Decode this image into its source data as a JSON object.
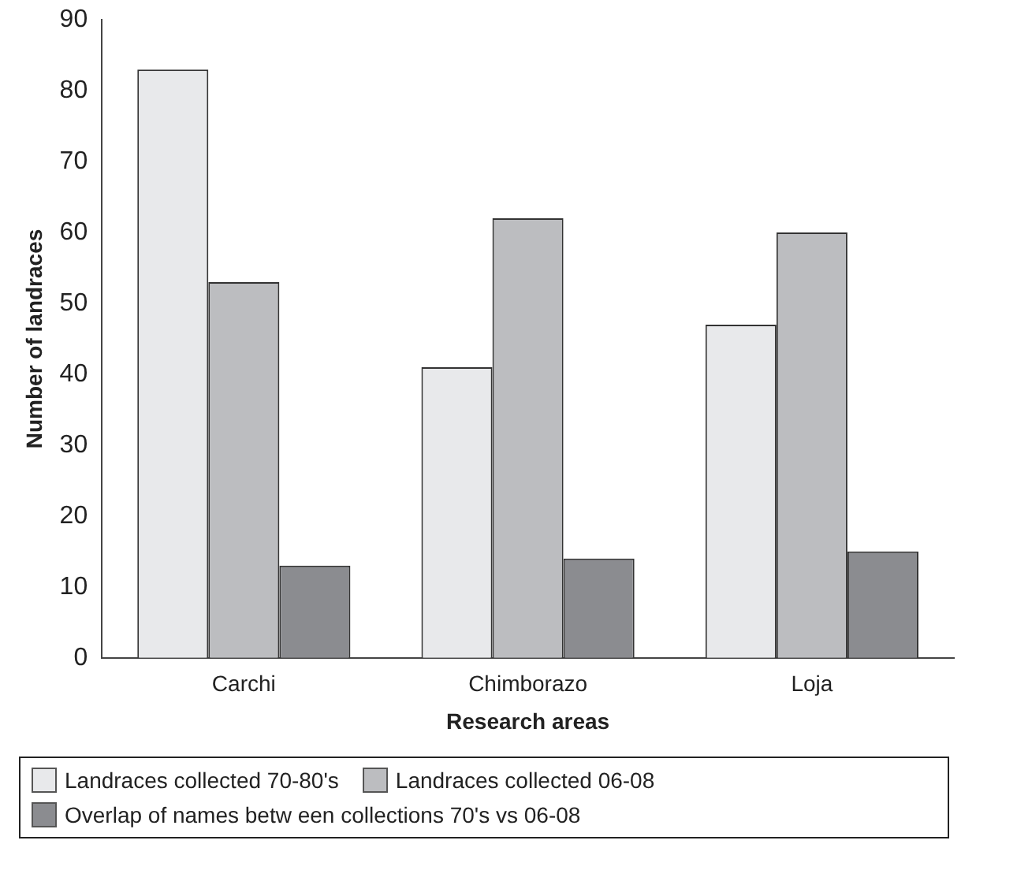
{
  "chart_data": {
    "type": "bar",
    "xlabel": "Research areas",
    "ylabel": "Number of landraces",
    "categories": [
      "Carchi",
      "Chimborazo",
      "Loja"
    ],
    "series": [
      {
        "name": "Landraces collected 70-80's",
        "color": "#e8e9eb",
        "values": [
          83,
          41,
          47
        ]
      },
      {
        "name": "Landraces collected 06-08",
        "color": "#bcbdc0",
        "values": [
          53,
          62,
          60
        ]
      },
      {
        "name": "Overlap of names betw een collections 70's vs 06-08",
        "color": "#8b8c90",
        "values": [
          13,
          14,
          15
        ]
      }
    ],
    "ylim": [
      0,
      90
    ],
    "yticks": [
      0,
      10,
      20,
      30,
      40,
      50,
      60,
      70,
      80,
      90
    ],
    "grid": false,
    "legend": "bottom"
  }
}
